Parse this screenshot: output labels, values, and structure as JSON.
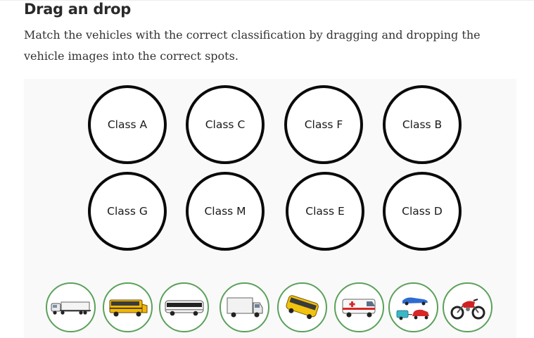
{
  "header": {
    "title": "Drag an drop",
    "description": "Match the vehicles with the correct classification by dragging and dropping the vehicle images into the correct spots."
  },
  "drop_zones": [
    {
      "label": "Class A"
    },
    {
      "label": "Class C"
    },
    {
      "label": "Class F"
    },
    {
      "label": "Class B"
    },
    {
      "label": "Class G"
    },
    {
      "label": "Class M"
    },
    {
      "label": "Class E"
    },
    {
      "label": "Class D"
    }
  ],
  "vehicles": [
    {
      "icon": "semi-truck-icon"
    },
    {
      "icon": "school-bus-icon"
    },
    {
      "icon": "coach-bus-icon"
    },
    {
      "icon": "box-truck-icon"
    },
    {
      "icon": "minibus-icon"
    },
    {
      "icon": "ambulance-icon"
    },
    {
      "icon": "car-with-trailer-icon"
    },
    {
      "icon": "motorcycle-icon"
    }
  ],
  "colors": {
    "zone_border": "#0a0a0a",
    "tile_border": "#5aa15a",
    "panel_background": "#f9f9f9",
    "school_bus_yellow": "#f2b705",
    "motorcycle_red": "#d32020"
  }
}
